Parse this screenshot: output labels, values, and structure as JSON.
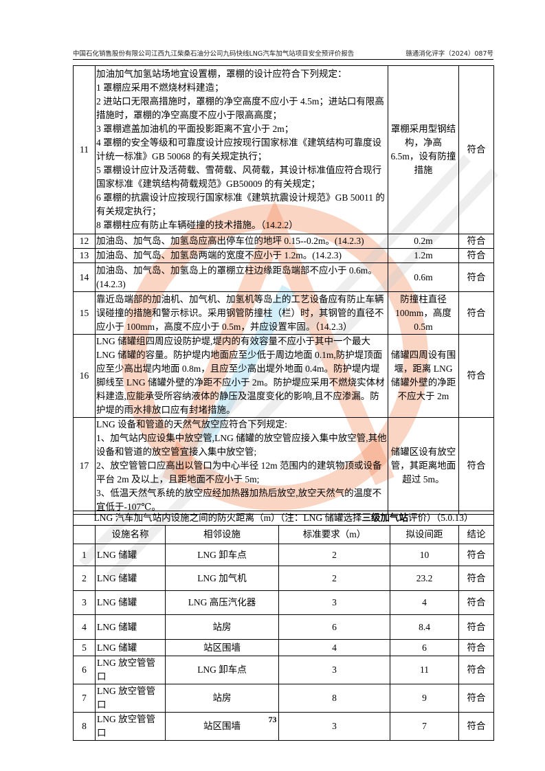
{
  "header": {
    "left": "中国石化销售股份有限公司江西九江柴桑石油分公司九码快线LNG汽车加气站项目安全预评价报告",
    "right": "赣通消化评字（2024）087号"
  },
  "rows": [
    {
      "no": "11",
      "lines": [
        "加油加气加氢站场地宜设置棚，罩棚的设计应符合下列规定：",
        "1 罩棚应采用不燃烧材料建造；",
        "2  进站口无限高措施时，罩棚的净空高度不应小于 4.5m；进站口有限高措施时，罩棚的净空高度不应小于限高高度；",
        "3 罩棚遮盖加油机的平面投影距离不宜小于 2m；",
        "4 罩棚的安全等级和可靠度设计应按现行国家标准《建筑结构可靠度设计统一标准》GB 50068 的有关规定执行；",
        "5  罩棚设计应计及活荷载、雪荷载、风荷载，其设计标准值应符合现行国家标准《建筑结构荷载规范》GB50009 的有关规定；",
        "6  罩棚的抗震设计应按现行国家标准《建筑抗震设计规范》GB 50011 的有关规定执行；",
        "8  罩棚柱应有防止车辆碰撞的技术措施。（14.2.2）"
      ],
      "measure": "罩棚采用型钢结构，净高 6.5m，设有防撞措施",
      "result": "符合"
    },
    {
      "no": "12",
      "lines": [
        "加油岛、加气岛、加氢岛应高出停车位的地坪 0.15--0.2m。(14.2.3)"
      ],
      "measure": "0.2m",
      "result": "符合"
    },
    {
      "no": "13",
      "lines": [
        "加油岛、加气岛、加氢岛两端的宽度不应小于 1.2m。(14.2.3)"
      ],
      "measure": "1.2m",
      "result": "符合"
    },
    {
      "no": "14",
      "lines": [
        "加油岛、加气岛、加氢岛上的罩棚立柱边缘距岛端部不应小于 0.6m。(14.2.3)"
      ],
      "measure": "0.6m",
      "result": "符合"
    },
    {
      "no": "15",
      "lines": [
        "靠近岛端部的加油机、加气机、加氢机等岛上的工艺设备应有防止车辆误碰撞的措施和警示标识。采用钢管防撞柱（栏）时，其钢管的直径不应小于 100mm，高度不应小于 0.5m，并应设置牢固。（14.2.3）"
      ],
      "measure": "防撞柱直径 100mm，高度 0.5m",
      "result": "符合"
    },
    {
      "no": "16",
      "lines": [
        "LNG 储罐组四周应设防护堤,堤内的有效容量不应小于其中一个最大LNG 储罐的容量。防护堤内地面应至少低于周边地面 0.1m,防护堤顶面应至少高出堤内地面 0.8m，且应至少高出堤外地面 0.4m。防护堤内堤脚线至 LNG 储罐外壁的净距不应小于 2m。防护堤应采用不燃烧实体材料建造,应能承受所容纳液体的静压及温度变化的影响,且不应渗漏。防护堤的雨水排放口应有封堵措施。"
      ],
      "measure": "储罐四周设有围堰，距离 LNG 储罐外壁的净距不应大于 2m",
      "result": "符合"
    },
    {
      "no": "17",
      "lines": [
        " LNG 设备和管道的天然气放空应符合下列规定:",
        "1、加气站内应设集中放空管,LNG 储罐的放空管应接入集中放空管,其他设备和管道的放空管宜接入集中放空管;",
        "2、放空管管口应高出以管口为中心半径 12m 范围内的建筑物顶或设备平台 2m 及以上，且距地面不应小于 5m;",
        "3、低温天然气系统的放空应经加热器加热后放空,放空天然气的温度不宜低于-107℃。"
      ],
      "measure": "储罐区设有放空管，其距离地面超过 5m。",
      "result": "符合"
    }
  ],
  "distance_section": {
    "title_pre": "LNG 汽车加气站内设施之间的防火距离（m）（注：LNG 储罐选择",
    "title_bold": "三级加气站",
    "title_post": "评价）（5.0.13）"
  },
  "distance_headers": [
    "",
    "设施名称",
    "相邻设施",
    "标准要求（m）",
    "拟设间距",
    "结论"
  ],
  "distance_rows": [
    {
      "no": "1",
      "name": "LNG 储罐",
      "adj": "LNG 卸车点",
      "std": "2",
      "plan": "10",
      "result": "符合"
    },
    {
      "no": "2",
      "name": "LNG 储罐",
      "adj": "LNG 加气机",
      "std": "2",
      "plan": "23.2",
      "result": "符合"
    },
    {
      "no": "3",
      "name": "LNG 储罐",
      "adj": "LNG 高压汽化器",
      "std": "3",
      "plan": "4",
      "result": "符合"
    },
    {
      "no": "4",
      "name": "LNG 储罐",
      "adj": "站房",
      "std": "6",
      "plan": "8.4",
      "result": "符合"
    },
    {
      "no": "5",
      "name": "LNG 储罐",
      "adj": "站区围墙",
      "std": "4",
      "plan": "6",
      "result": "符合"
    },
    {
      "no": "6",
      "name": "LNG 放空管管口",
      "adj": "LNG 卸车点",
      "std": "3",
      "plan": "11",
      "result": "符合"
    },
    {
      "no": "7",
      "name": "LNG 放空管管口",
      "adj": "站房",
      "std": "8",
      "plan": "9",
      "result": "符合"
    },
    {
      "no": "8",
      "name": "LNG 放空管管口",
      "adj": "站区围墙",
      "std": "3",
      "plan": "7",
      "result": "符合"
    }
  ],
  "page_number": "73",
  "watermark": {
    "text": "江西通安",
    "color": "#f07a4a",
    "icon": "company-seal-watermark"
  }
}
